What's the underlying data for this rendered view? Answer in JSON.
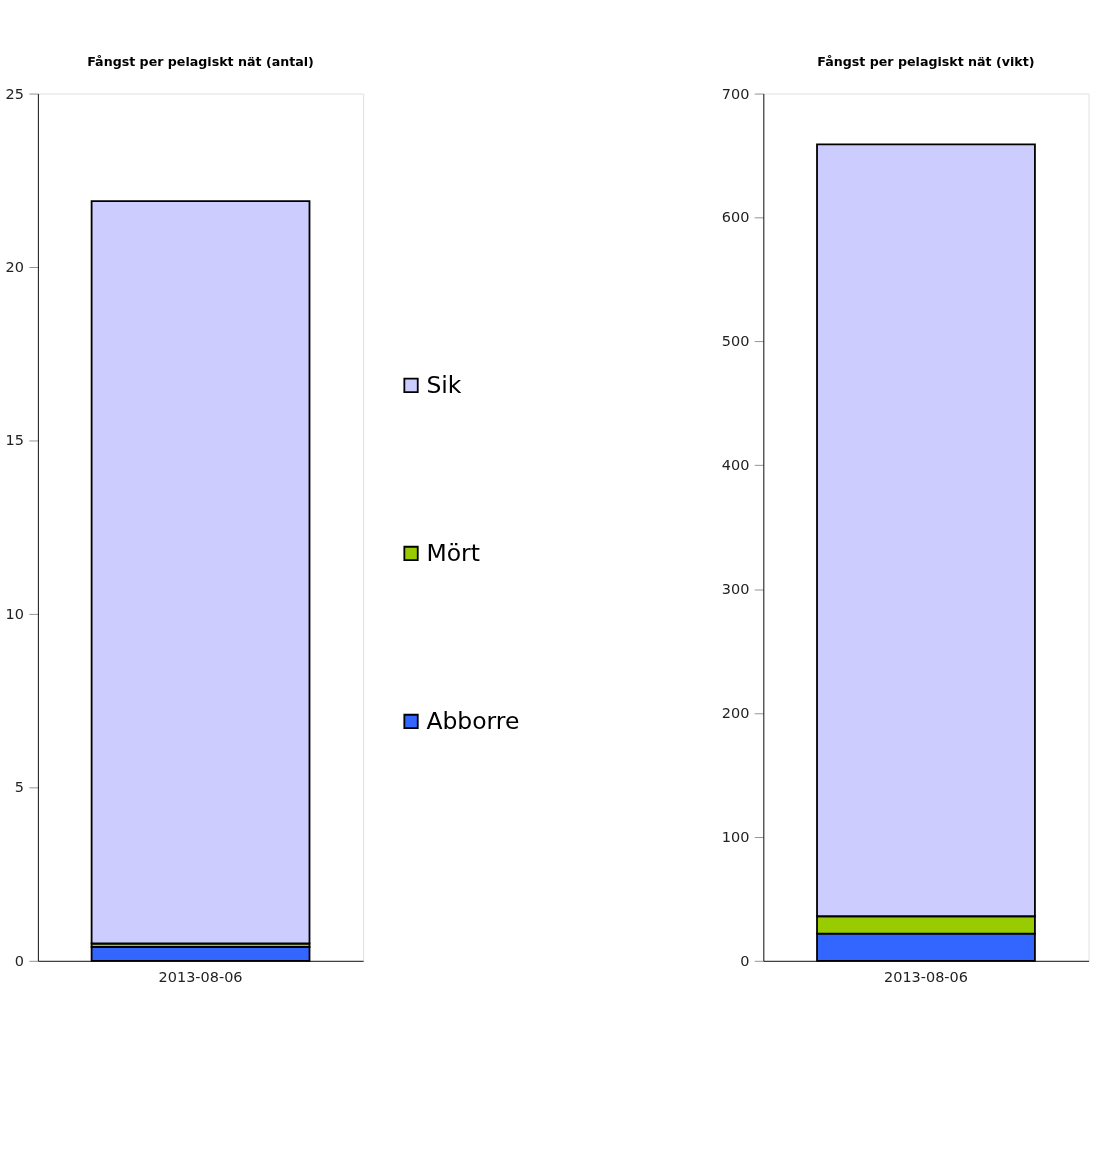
{
  "chart_data": [
    {
      "type": "bar",
      "stacked": true,
      "title": "Fångst per pelagiskt nät (antal)",
      "categories": [
        "2013-08-06"
      ],
      "series": [
        {
          "name": "Abborre",
          "color": "#3366ff",
          "values": [
            0.4
          ]
        },
        {
          "name": "Mört",
          "color": "#99cc00",
          "values": [
            0.1
          ]
        },
        {
          "name": "Sik",
          "color": "#ccccff",
          "values": [
            21.4
          ]
        }
      ],
      "ylim": [
        0,
        25
      ],
      "yticks": [
        0,
        5,
        10,
        15,
        20,
        25
      ],
      "grid": false,
      "legend": "right"
    },
    {
      "type": "bar",
      "stacked": true,
      "title": "Fångst per pelagiskt nät (vikt)",
      "categories": [
        "2013-08-06"
      ],
      "series": [
        {
          "color": "#3366ff",
          "values": [
            22
          ]
        },
        {
          "color": "#99cc00",
          "values": [
            14
          ]
        },
        {
          "color": "#ccccff",
          "values": [
            623
          ]
        }
      ],
      "ylim": [
        0,
        700
      ],
      "yticks": [
        0,
        100,
        200,
        300,
        400,
        500,
        600,
        700
      ],
      "grid": false,
      "legend": false
    }
  ]
}
